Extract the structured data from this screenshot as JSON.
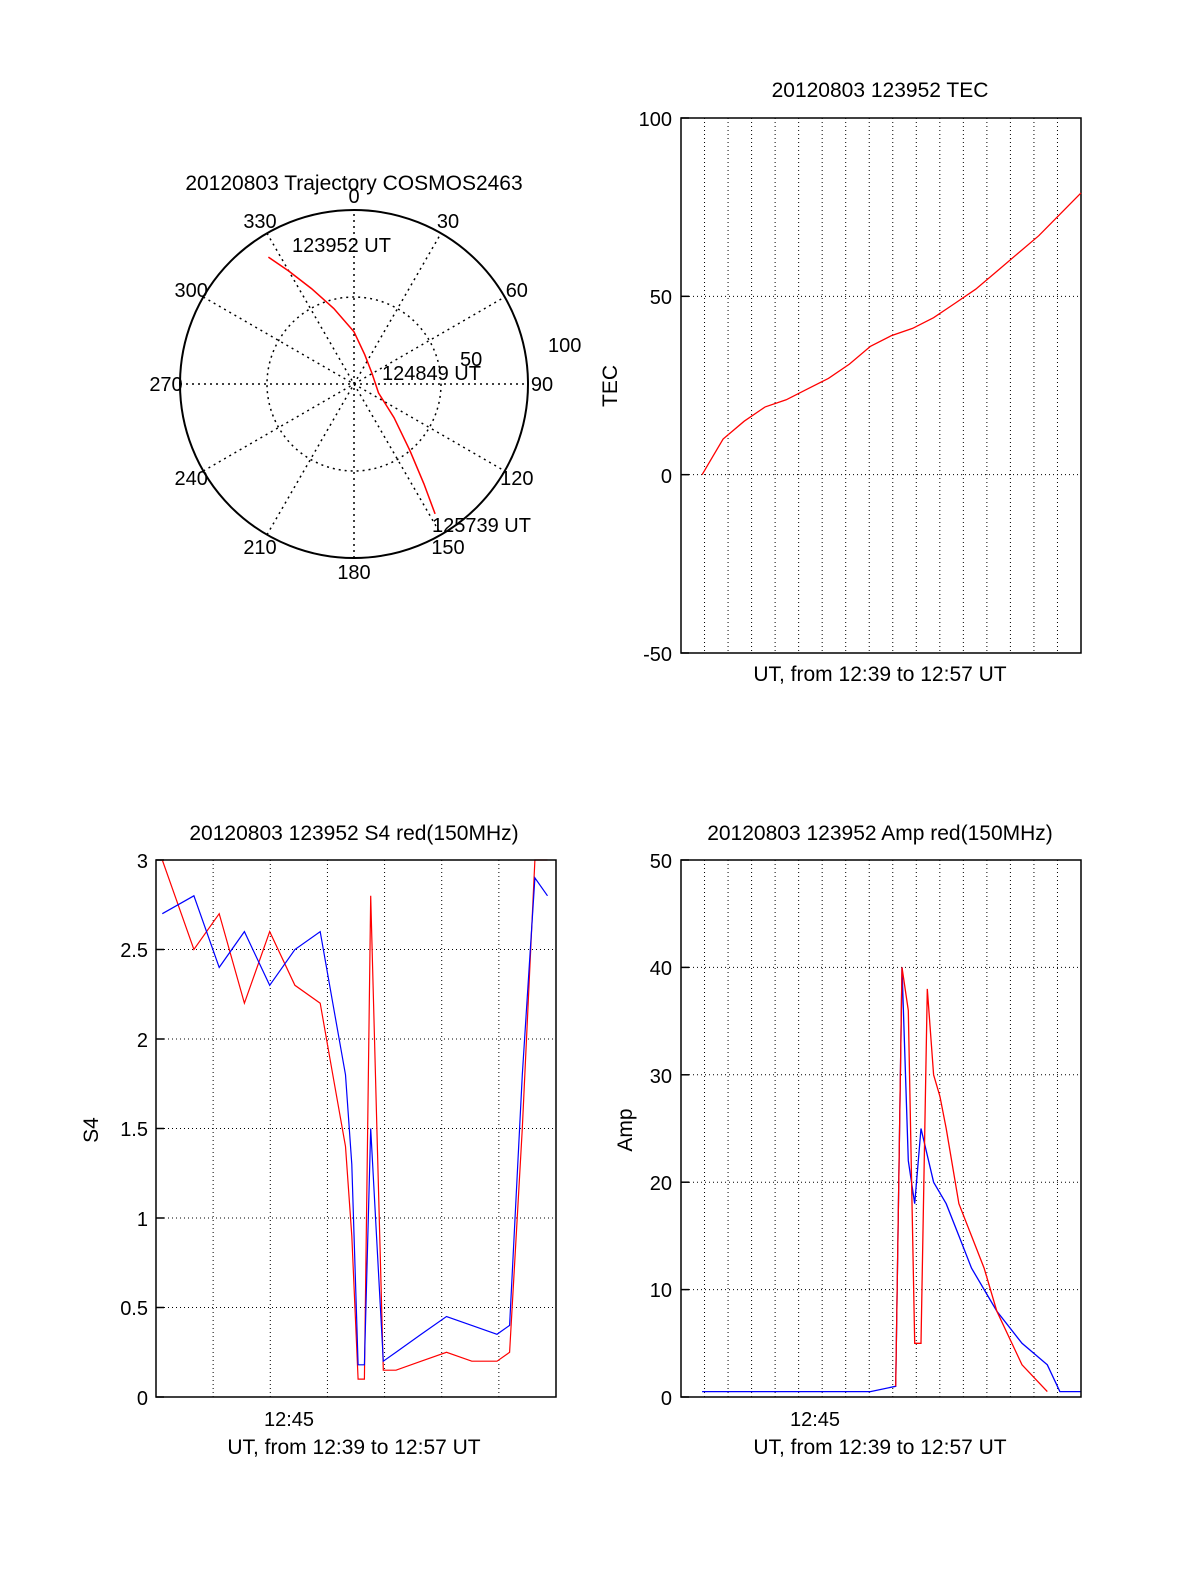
{
  "colors": {
    "red": "#ff0000",
    "blue": "#0000ff",
    "axis": "#000000"
  },
  "chart_data": [
    {
      "id": "trajectory",
      "type": "polar",
      "title": "20120803 Trajectory COSMOS2463",
      "azimuth_labels": [
        "0",
        "30",
        "60",
        "90",
        "120",
        "150",
        "180",
        "210",
        "240",
        "270",
        "300",
        "330"
      ],
      "radial_labels": [
        "50",
        "100"
      ],
      "radial_max": 100,
      "track": {
        "color": "red",
        "points": [
          [
            326,
            88
          ],
          [
            330,
            75
          ],
          [
            336,
            60
          ],
          [
            345,
            45
          ],
          [
            360,
            30
          ],
          [
            20,
            18
          ],
          [
            60,
            12
          ],
          [
            110,
            15
          ],
          [
            130,
            30
          ],
          [
            140,
            50
          ],
          [
            145,
            70
          ],
          [
            148,
            88
          ]
        ]
      },
      "annotations": [
        {
          "text": "123952 UT",
          "az": 333,
          "r": 87
        },
        {
          "text": "124849 UT",
          "az": 75,
          "r": 32
        },
        {
          "text": "125739 UT",
          "az": 148,
          "r": 94
        }
      ]
    },
    {
      "id": "tec",
      "type": "line",
      "title": "20120803 123952 TEC",
      "xlabel": "UT, from 12:39 to 12:57 UT",
      "ylabel": "TEC",
      "ylim": [
        -50,
        100
      ],
      "yticks": [
        "100",
        "50",
        "0",
        "-50"
      ],
      "xlim": [
        12.65,
        12.9667
      ],
      "series": [
        {
          "color": "red",
          "x": [
            12.6667,
            12.675,
            12.6833,
            12.7,
            12.7167,
            12.7333,
            12.75,
            12.7667,
            12.7833,
            12.8,
            12.8167,
            12.8333,
            12.85,
            12.8667,
            12.8833,
            12.9,
            12.9167,
            12.9333,
            12.95,
            12.9667
          ],
          "y": [
            0,
            5,
            10,
            15,
            19,
            21,
            24,
            27,
            31,
            36,
            39,
            41,
            44,
            48,
            52,
            57,
            62,
            67,
            73,
            79
          ]
        }
      ]
    },
    {
      "id": "s4",
      "type": "line",
      "title": "20120803 123952 S4 red(150MHz)",
      "xlabel": "UT, from 12:39 to 12:57 UT",
      "ylabel": "S4",
      "ylim": [
        0,
        3
      ],
      "yticks": [
        "3",
        "2.5",
        "2",
        "1.5",
        "1",
        "0.5",
        "0"
      ],
      "xtick_label": "12:45",
      "xtick_value": 12.75,
      "xlim": [
        12.65,
        12.9667
      ],
      "series": [
        {
          "color": "red",
          "x": [
            12.655,
            12.68,
            12.7,
            12.72,
            12.74,
            12.76,
            12.78,
            12.79,
            12.8,
            12.805,
            12.81,
            12.815,
            12.82,
            12.83,
            12.84,
            12.86,
            12.88,
            12.9,
            12.92,
            12.93,
            12.94,
            12.95,
            12.96
          ],
          "y": [
            3,
            2.5,
            2.7,
            2.2,
            2.6,
            2.3,
            2.2,
            1.8,
            1.4,
            0.9,
            0.1,
            0.1,
            2.8,
            0.15,
            0.15,
            0.2,
            0.25,
            0.2,
            0.2,
            0.25,
            1.5,
            3,
            3
          ]
        },
        {
          "color": "blue",
          "x": [
            12.655,
            12.68,
            12.7,
            12.72,
            12.74,
            12.76,
            12.78,
            12.79,
            12.8,
            12.805,
            12.81,
            12.815,
            12.82,
            12.83,
            12.84,
            12.86,
            12.88,
            12.9,
            12.92,
            12.93,
            12.94,
            12.95,
            12.96
          ],
          "y": [
            2.7,
            2.8,
            2.4,
            2.6,
            2.3,
            2.5,
            2.6,
            2.2,
            1.8,
            1.3,
            0.18,
            0.18,
            1.5,
            0.2,
            0.25,
            0.35,
            0.45,
            0.4,
            0.35,
            0.4,
            1.8,
            2.9,
            2.8
          ]
        }
      ]
    },
    {
      "id": "amp",
      "type": "line",
      "title": "20120803 123952 Amp red(150MHz)",
      "xlabel": "UT, from 12:39 to 12:57 UT",
      "ylabel": "Amp",
      "ylim": [
        0,
        50
      ],
      "yticks": [
        "50",
        "40",
        "30",
        "20",
        "10",
        "0"
      ],
      "xtick_label": "12:45",
      "xtick_value": 12.75,
      "xlim": [
        12.65,
        12.9667
      ],
      "series": [
        {
          "color": "blue",
          "x": [
            12.6667,
            12.72,
            12.8,
            12.82,
            12.825,
            12.83,
            12.835,
            12.84,
            12.85,
            12.86,
            12.87,
            12.88,
            12.9,
            12.92,
            12.94,
            12.95,
            12.9667
          ],
          "y": [
            0.5,
            0.5,
            0.5,
            1,
            40,
            22,
            18,
            25,
            20,
            18,
            15,
            12,
            8,
            5,
            3,
            0.5,
            0.5
          ]
        },
        {
          "color": "red",
          "x": [
            12.82,
            12.825,
            12.83,
            12.835,
            12.84,
            12.845,
            12.85,
            12.855,
            12.86,
            12.87,
            12.88,
            12.89,
            12.9,
            12.92,
            12.94
          ],
          "y": [
            1,
            40,
            36,
            5,
            5,
            38,
            30,
            28,
            25,
            18,
            15,
            12,
            8,
            3,
            0.5
          ]
        }
      ]
    }
  ]
}
